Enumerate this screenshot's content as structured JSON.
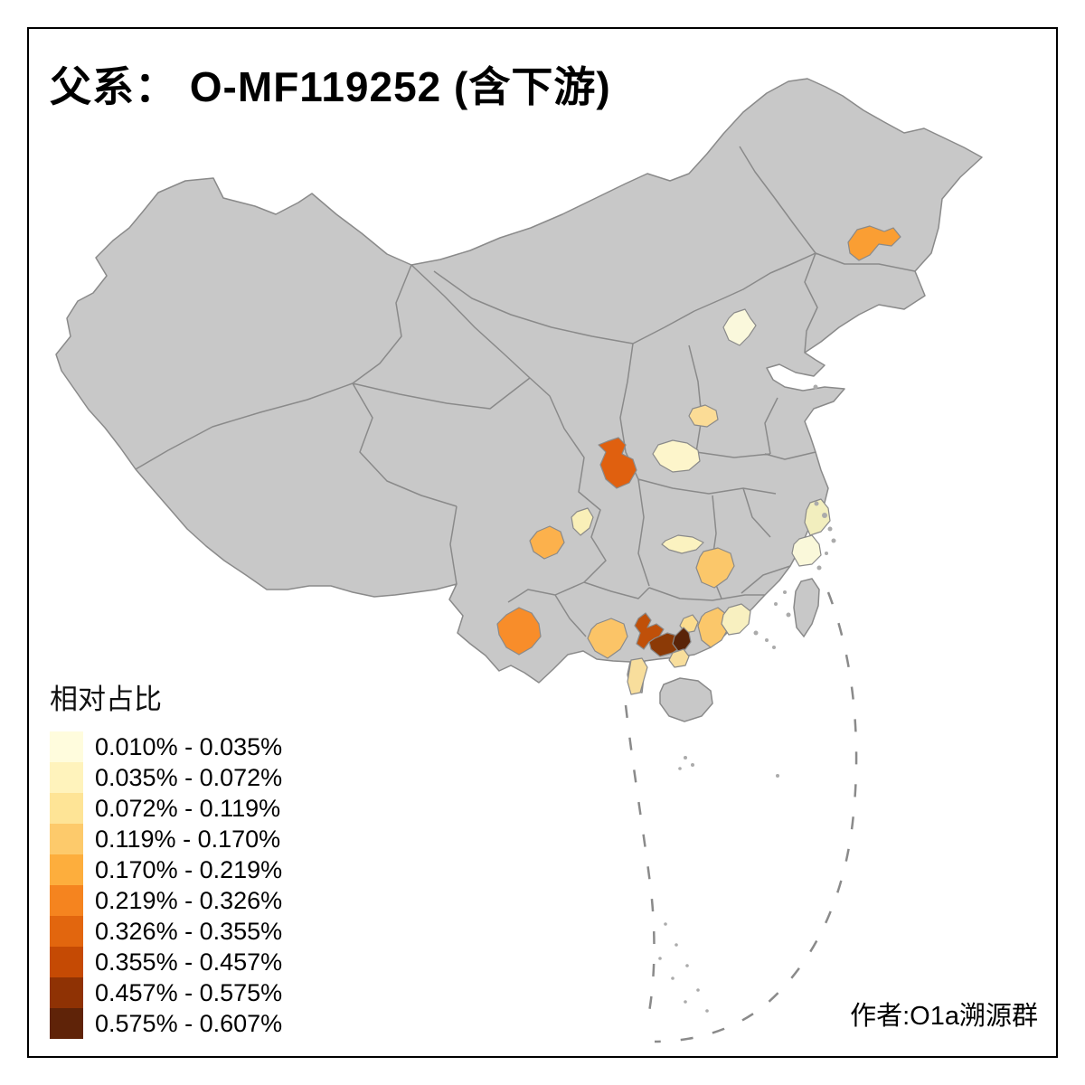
{
  "title": "父系： O-MF119252 (含下游)",
  "legend": {
    "title": "相对占比",
    "classes": [
      {
        "label": "0.010% - 0.035%",
        "color": "#FFFCDD"
      },
      {
        "label": "0.035% - 0.072%",
        "color": "#FFF3BC"
      },
      {
        "label": "0.072% - 0.119%",
        "color": "#FEE496"
      },
      {
        "label": "0.119% - 0.170%",
        "color": "#FDCA6B"
      },
      {
        "label": "0.170% - 0.219%",
        "color": "#FDAE3D"
      },
      {
        "label": "0.219% - 0.326%",
        "color": "#F5841F"
      },
      {
        "label": "0.326% - 0.355%",
        "color": "#E2660E"
      },
      {
        "label": "0.355% - 0.457%",
        "color": "#C54A04"
      },
      {
        "label": "0.457% - 0.575%",
        "color": "#8F3204"
      },
      {
        "label": "0.575% - 0.607%",
        "color": "#5F2308"
      }
    ]
  },
  "attribution": "作者:O1a溯源群",
  "map": {
    "background": "#FFFFFF",
    "base_fill": "#C8C8C8",
    "border_color": "#8A8A8A",
    "frame_color": "#000000",
    "regions": [
      {
        "id": "heilongjiang-harbin",
        "color": "#FA9E33",
        "legend_class": 5
      },
      {
        "id": "beijing",
        "color": "#FAF8DC",
        "legend_class": 1
      },
      {
        "id": "shanxi-south",
        "color": "#FBDC96",
        "legend_class": 3
      },
      {
        "id": "henan-west",
        "color": "#FDF5CB",
        "legend_class": 2
      },
      {
        "id": "shaanxi-south",
        "color": "#E0600F",
        "legend_class": 7
      },
      {
        "id": "sichuan-northeast-small",
        "color": "#F9EFB8",
        "legend_class": 2
      },
      {
        "id": "sichuan-chengdu",
        "color": "#FCB14C",
        "legend_class": 5
      },
      {
        "id": "hubei-central",
        "color": "#FBF2C0",
        "legend_class": 2
      },
      {
        "id": "hunan-north",
        "color": "#FBC76A",
        "legend_class": 4
      },
      {
        "id": "zhejiang-north",
        "color": "#F2EEBE",
        "legend_class": 2
      },
      {
        "id": "zhejiang-south",
        "color": "#FAF8DA",
        "legend_class": 1
      },
      {
        "id": "yunnan-southwest",
        "color": "#F88D2A",
        "legend_class": 6
      },
      {
        "id": "guangxi-central",
        "color": "#FBC467",
        "legend_class": 4
      },
      {
        "id": "guangxi-east",
        "color": "#C05009",
        "legend_class": 8
      },
      {
        "id": "guangxi-southeast",
        "color": "#8C3A06",
        "legend_class": 9
      },
      {
        "id": "guangdong-far-west",
        "color": "#5A2408",
        "legend_class": 10
      },
      {
        "id": "guangdong-zhaoqing-patch",
        "color": "#FBDC8E",
        "legend_class": 3
      },
      {
        "id": "guangdong-maoming-south",
        "color": "#F8DE9C",
        "legend_class": 3
      },
      {
        "id": "guangdong-leizhou",
        "color": "#F8DE9C",
        "legend_class": 3
      },
      {
        "id": "guangdong-west-central",
        "color": "#FBC76A",
        "legend_class": 4
      },
      {
        "id": "guangdong-central-pale",
        "color": "#F8F0C0",
        "legend_class": 2
      }
    ]
  }
}
